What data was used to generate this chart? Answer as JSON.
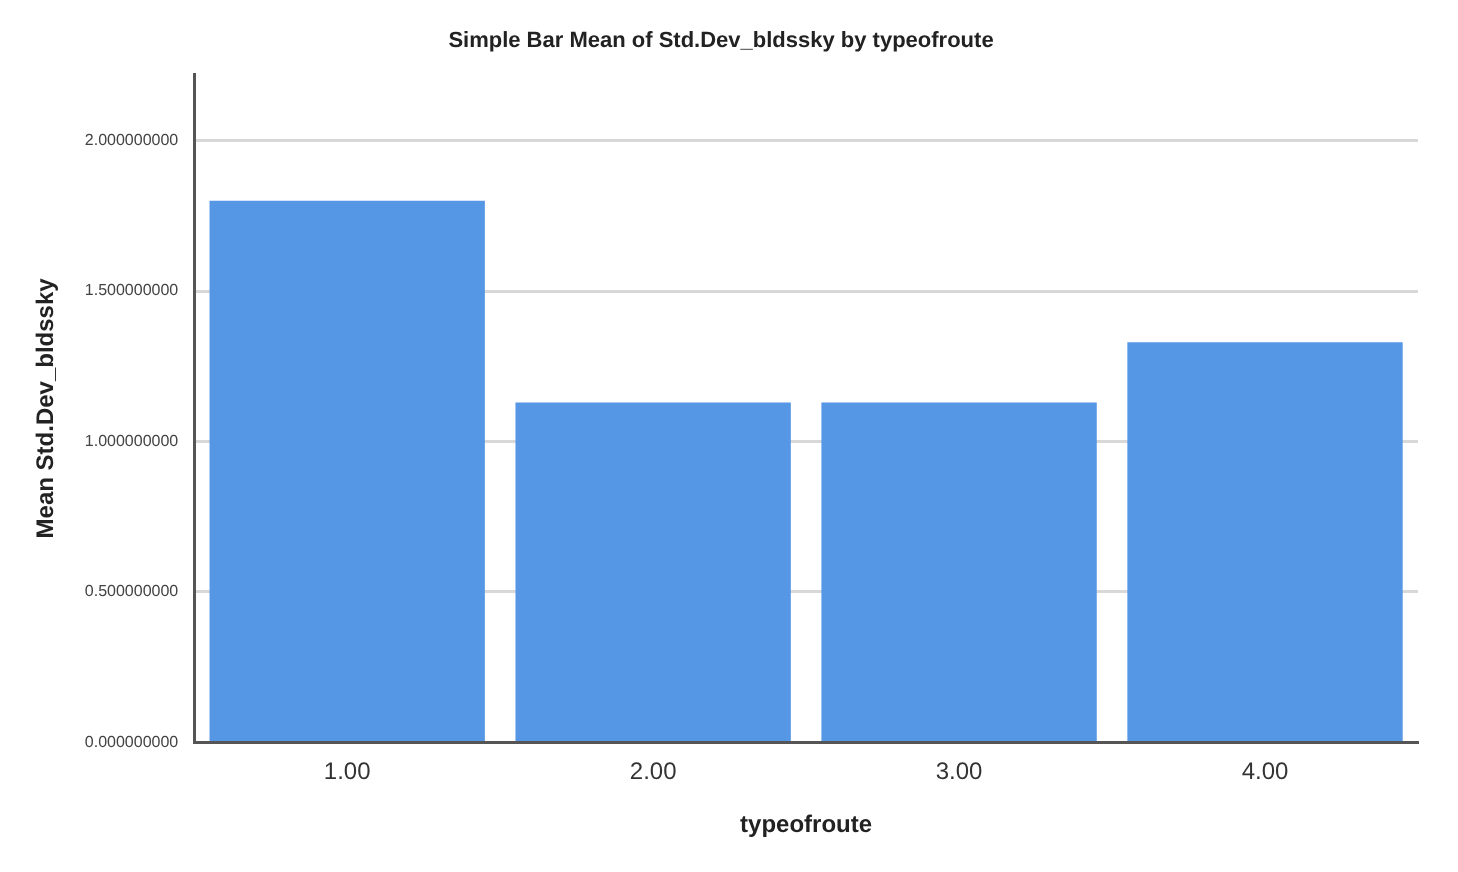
{
  "chart_data": {
    "type": "bar",
    "title": "Simple Bar Mean of Std.Dev_bldssky by typeofroute",
    "xlabel": "typeofroute",
    "ylabel": "Mean Std.Dev_bldssky",
    "categories": [
      "1.00",
      "2.00",
      "3.00",
      "4.00"
    ],
    "values": [
      1.8,
      1.13,
      1.13,
      1.33
    ],
    "color": "#5596e5",
    "ylim": [
      0,
      2.22
    ],
    "yticks": [
      {
        "value": 0,
        "label": "0.000000000"
      },
      {
        "value": 0.5,
        "label": "0.500000000"
      },
      {
        "value": 1,
        "label": "1.000000000"
      },
      {
        "value": 1.5,
        "label": "1.500000000"
      },
      {
        "value": 2,
        "label": "2.000000000"
      }
    ],
    "grid": "y",
    "legend": false
  }
}
